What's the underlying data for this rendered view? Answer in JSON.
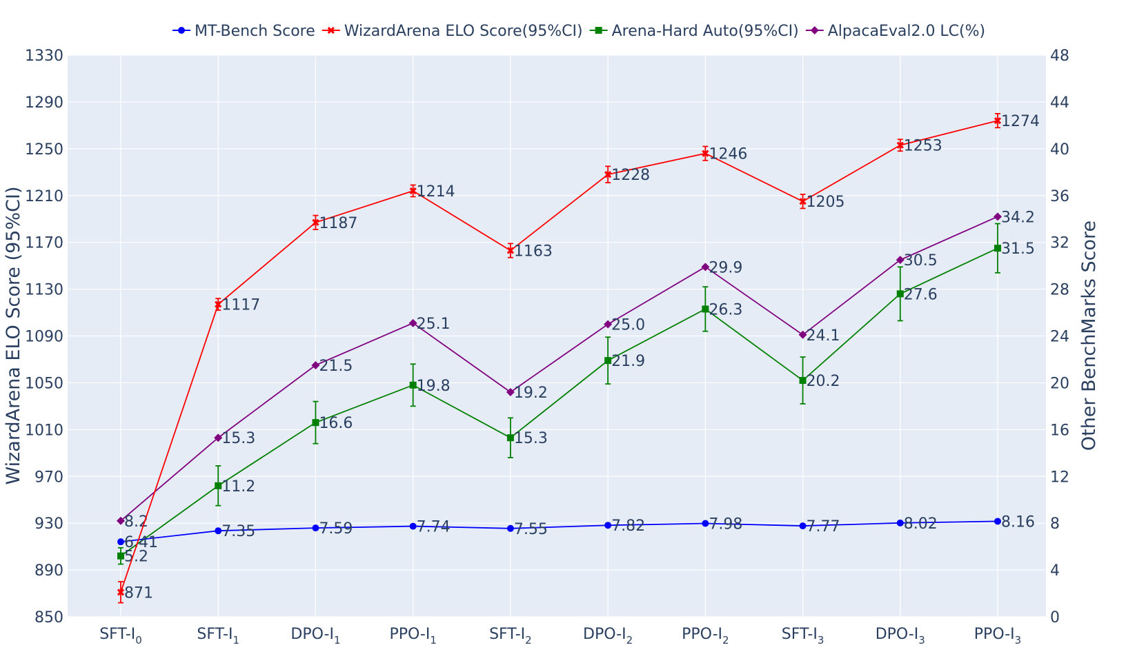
{
  "chart_data": {
    "type": "line",
    "categories": [
      {
        "base": "SFT-I",
        "sub": "0"
      },
      {
        "base": "SFT-I",
        "sub": "1"
      },
      {
        "base": "DPO-I",
        "sub": "1"
      },
      {
        "base": "PPO-I",
        "sub": "1"
      },
      {
        "base": "SFT-I",
        "sub": "2"
      },
      {
        "base": "DPO-I",
        "sub": "2"
      },
      {
        "base": "PPO-I",
        "sub": "2"
      },
      {
        "base": "SFT-I",
        "sub": "3"
      },
      {
        "base": "DPO-I",
        "sub": "3"
      },
      {
        "base": "PPO-I",
        "sub": "3"
      }
    ],
    "y_left": {
      "label": "WizardArena ELO Score (95%CI)",
      "range": [
        850,
        1330
      ],
      "ticks": [
        850,
        890,
        930,
        970,
        1010,
        1050,
        1090,
        1130,
        1170,
        1210,
        1250,
        1290,
        1330
      ]
    },
    "y_right": {
      "label": "Other BenchMarks Score",
      "range": [
        0,
        48
      ],
      "ticks": [
        0,
        4,
        8,
        12,
        16,
        20,
        24,
        28,
        32,
        36,
        40,
        44,
        48
      ]
    },
    "legend_position": "top",
    "grid": true,
    "series": [
      {
        "name": "MT-Bench Score",
        "axis": "right",
        "color": "#0000ff",
        "marker": "circle",
        "values": [
          6.41,
          7.35,
          7.59,
          7.74,
          7.55,
          7.82,
          7.98,
          7.77,
          8.02,
          8.16
        ],
        "labels": [
          "6.41",
          "7.35",
          "7.59",
          "7.74",
          "7.55",
          "7.82",
          "7.98",
          "7.77",
          "8.02",
          "8.16"
        ]
      },
      {
        "name": "WizardArena ELO Score(95%CI)",
        "axis": "left",
        "color": "#ff0000",
        "marker": "x",
        "values": [
          871,
          1117,
          1187,
          1214,
          1163,
          1228,
          1246,
          1205,
          1253,
          1274
        ],
        "labels": [
          "871",
          "1117",
          "1187",
          "1214",
          "1163",
          "1228",
          "1246",
          "1205",
          "1253",
          "1274"
        ],
        "error": [
          9,
          5,
          6,
          5,
          6,
          7,
          6,
          6,
          5,
          6
        ]
      },
      {
        "name": "Arena-Hard Auto(95%CI)",
        "axis": "right",
        "color": "#008000",
        "marker": "square",
        "values": [
          5.2,
          11.2,
          16.6,
          19.8,
          15.3,
          21.9,
          26.3,
          20.2,
          27.6,
          31.5
        ],
        "labels": [
          "5.2",
          "11.2",
          "16.6",
          "19.8",
          "15.3",
          "21.9",
          "26.3",
          "20.2",
          "27.6",
          "31.5"
        ],
        "error": [
          0.7,
          1.7,
          1.8,
          1.8,
          1.7,
          2.0,
          1.9,
          2.0,
          2.3,
          2.1
        ]
      },
      {
        "name": "AlpacaEval2.0 LC(%)",
        "axis": "right",
        "color": "#800080",
        "marker": "diamond",
        "values": [
          8.2,
          15.3,
          21.5,
          25.1,
          19.2,
          25.0,
          29.9,
          24.1,
          30.5,
          34.2
        ],
        "labels": [
          "8.2",
          "15.3",
          "21.5",
          "25.1",
          "19.2",
          "25.0",
          "29.9",
          "24.1",
          "30.5",
          "34.2"
        ]
      }
    ]
  }
}
